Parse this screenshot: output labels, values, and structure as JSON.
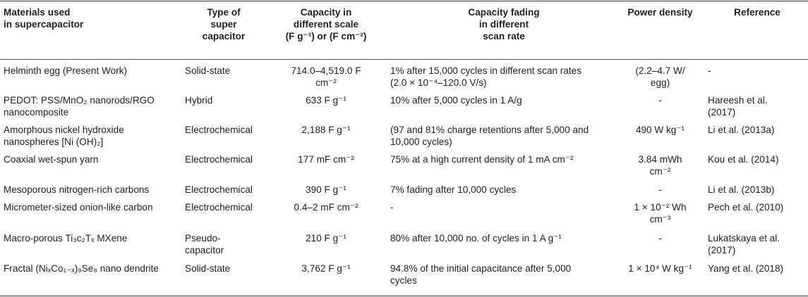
{
  "headers": [
    "Materials used\nin supercapacitor",
    "Type of\nsuper\ncapacitor",
    "Capacity in\ndifferent scale\n(F g⁻¹) or (F cm⁻²)",
    "Capacity fading\nin different\nscan rate",
    "Power density",
    "Reference"
  ],
  "rows": [
    {
      "material": "Helminth egg (Present Work)",
      "type": "Solid-state",
      "capacity": "714.0–4,519.0 F\ncm⁻²",
      "fading": "1% after 15,000 cycles in different scan rates\n(2.0 × 10⁻⁴–120.0 V/s)",
      "power": "(2.2–4.7 W/\negg)",
      "reference": "-"
    },
    {
      "material": "PEDOT: PSS/MnO₂ nanorods/RGO\nnanocomposite",
      "type": "Hybrid",
      "capacity": "633 F g⁻¹",
      "fading": "10% after 5,000 cycles in 1 A/g",
      "power": "-",
      "reference": "Hareesh et al.\n(2017)"
    },
    {
      "material": "Amorphous nickel hydroxide\nnanospheres [Ni (OH)₂]",
      "type": "Electrochemical",
      "capacity": "2,188 F g⁻¹",
      "fading": "(97 and 81% charge retentions after 5,000 and\n10,000 cycles)",
      "power": "490 W kg⁻¹",
      "reference": "Li et al. (2013a)"
    },
    {
      "material": "Coaxial wet-spun yarn",
      "type": "Electrochemical",
      "capacity": "177 mF cm⁻²",
      "fading": "75% at a high current density of 1 mA cm⁻²",
      "power": "3.84 mWh\ncm⁻²",
      "reference": "Kou et al. (2014)"
    },
    {
      "material": "Mesoporous nitrogen-rich carbons",
      "type": "Electrochemical",
      "capacity": "390 F g⁻¹",
      "fading": "7% fading after 10,000 cycles",
      "power": "-",
      "reference": "Li et al. (2013b)"
    },
    {
      "material": "Micrometer-sized onion-like carbon",
      "type": "Electrochemical",
      "capacity": "0.4–2 mF cm⁻²",
      "fading": "-",
      "power": "1 × 10⁻² Wh\ncm⁻³",
      "reference": "Pech et al. (2010)"
    },
    {
      "material": "Macro-porous Ti₃c₂Tₓ MXene",
      "type": "Pseudo-\ncapacitor",
      "capacity": "210 F g⁻¹",
      "fading": "80% after 10,000 no. of cycles in 1 A g⁻¹",
      "power": "-",
      "reference": "Lukatskaya et al.\n(2017)"
    },
    {
      "material": "Fractal (NiₓCo₁₋ₓ)₉Se₈ nano dendrite",
      "type": "Solid-state",
      "capacity": "3,762 F g⁻¹",
      "fading": "94.8% of the initial capacitance after 5,000\ncycles",
      "power": "1 × 10⁴ W kg⁻¹",
      "reference": "Yang et al. (2018)"
    }
  ]
}
